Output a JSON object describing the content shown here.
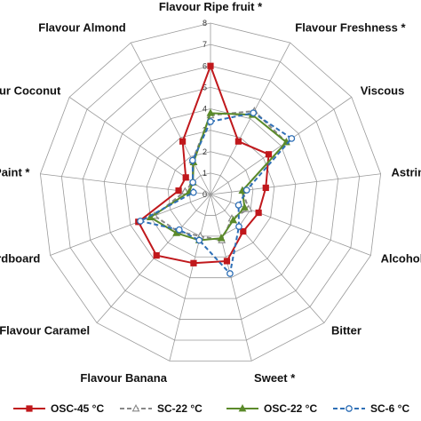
{
  "chart_data": {
    "type": "radar",
    "axes": [
      "Flavour Ripe fruit *",
      "Flavour Freshness *",
      "Viscous",
      "Astringent",
      "Alcohol",
      "Bitter",
      "Sweet *",
      "Flavour Banana",
      "Flavour Caramel",
      "Cardboard",
      "Paint *",
      "Flavour Coconut",
      "Flavour Almond"
    ],
    "rmax": 8,
    "ticks": [
      0,
      1,
      2,
      3,
      4,
      5,
      6,
      7,
      8
    ],
    "grid": true,
    "legend_position": "bottom",
    "series": [
      {
        "name": "OSC-45 °C",
        "color": "#c0181c",
        "dash": "solid",
        "marker": "square-filled",
        "values": [
          6.0,
          2.8,
          3.3,
          2.6,
          2.4,
          2.3,
          3.2,
          3.3,
          3.8,
          3.6,
          1.5,
          1.4,
          2.8
        ]
      },
      {
        "name": "SC-22 °C",
        "color": "#888888",
        "dash": "dashed",
        "marker": "triangle-open",
        "values": [
          3.7,
          4.4,
          4.3,
          1.5,
          1.9,
          1.5,
          2.2,
          2.0,
          2.3,
          2.8,
          1.2,
          1.0,
          1.8
        ]
      },
      {
        "name": "OSC-22 °C",
        "color": "#5b8a2a",
        "dash": "solid",
        "marker": "triangle-filled",
        "values": [
          3.8,
          4.2,
          4.3,
          1.5,
          1.7,
          1.6,
          2.1,
          2.2,
          2.4,
          3.0,
          1.0,
          1.0,
          1.7
        ]
      },
      {
        "name": "SC-6 °C",
        "color": "#2e6fb6",
        "dash": "dashed",
        "marker": "circle-open",
        "values": [
          3.4,
          4.3,
          4.6,
          1.7,
          1.4,
          2.0,
          3.8,
          2.2,
          2.2,
          3.5,
          0.8,
          1.0,
          1.8
        ]
      }
    ]
  },
  "legend": {
    "items": [
      {
        "label": "OSC-45 °C"
      },
      {
        "label": "SC-22 °C"
      },
      {
        "label": "OSC-22 °C"
      },
      {
        "label": "SC-6 °C"
      }
    ]
  }
}
